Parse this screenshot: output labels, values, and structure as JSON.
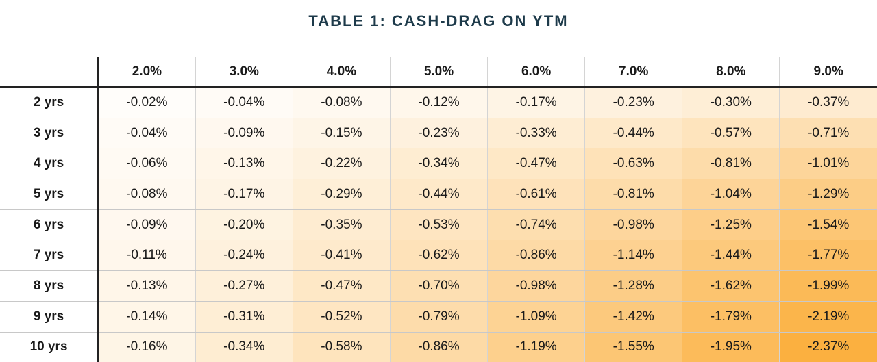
{
  "title": "TABLE 1: CASH-DRAG ON YTM",
  "chart_data": {
    "type": "heatmap",
    "title": "TABLE 1: CASH-DRAG ON YTM",
    "columns": [
      "2.0%",
      "3.0%",
      "4.0%",
      "5.0%",
      "6.0%",
      "7.0%",
      "8.0%",
      "9.0%"
    ],
    "rows": [
      {
        "label": "2 yrs",
        "values": [
          "-0.02%",
          "-0.04%",
          "-0.08%",
          "-0.12%",
          "-0.17%",
          "-0.23%",
          "-0.30%",
          "-0.37%"
        ]
      },
      {
        "label": "3 yrs",
        "values": [
          "-0.04%",
          "-0.09%",
          "-0.15%",
          "-0.23%",
          "-0.33%",
          "-0.44%",
          "-0.57%",
          "-0.71%"
        ]
      },
      {
        "label": "4 yrs",
        "values": [
          "-0.06%",
          "-0.13%",
          "-0.22%",
          "-0.34%",
          "-0.47%",
          "-0.63%",
          "-0.81%",
          "-1.01%"
        ]
      },
      {
        "label": "5 yrs",
        "values": [
          "-0.08%",
          "-0.17%",
          "-0.29%",
          "-0.44%",
          "-0.61%",
          "-0.81%",
          "-1.04%",
          "-1.29%"
        ]
      },
      {
        "label": "6 yrs",
        "values": [
          "-0.09%",
          "-0.20%",
          "-0.35%",
          "-0.53%",
          "-0.74%",
          "-0.98%",
          "-1.25%",
          "-1.54%"
        ]
      },
      {
        "label": "7 yrs",
        "values": [
          "-0.11%",
          "-0.24%",
          "-0.41%",
          "-0.62%",
          "-0.86%",
          "-1.14%",
          "-1.44%",
          "-1.77%"
        ]
      },
      {
        "label": "8 yrs",
        "values": [
          "-0.13%",
          "-0.27%",
          "-0.47%",
          "-0.70%",
          "-0.98%",
          "-1.28%",
          "-1.62%",
          "-1.99%"
        ]
      },
      {
        "label": "9 yrs",
        "values": [
          "-0.14%",
          "-0.31%",
          "-0.52%",
          "-0.79%",
          "-1.09%",
          "-1.42%",
          "-1.79%",
          "-2.19%"
        ]
      },
      {
        "label": "10 yrs",
        "values": [
          "-0.16%",
          "-0.34%",
          "-0.58%",
          "-0.86%",
          "-1.19%",
          "-1.55%",
          "-1.95%",
          "-2.37%"
        ]
      }
    ],
    "color_scale": {
      "low": "#ffffff",
      "high": "#fbb040"
    },
    "grid": true
  }
}
